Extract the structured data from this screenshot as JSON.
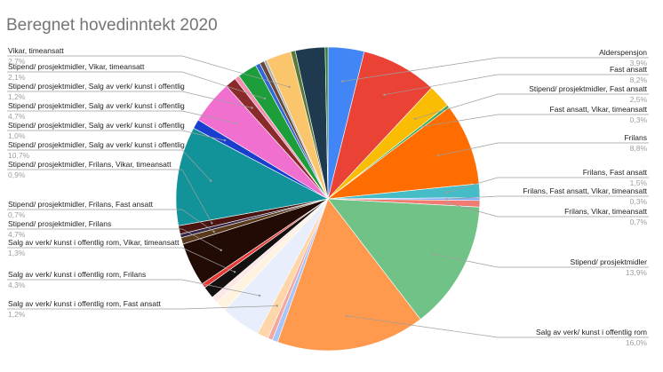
{
  "chart_data": {
    "type": "pie",
    "title": "Beregnet hovedinntekt 2020",
    "slices": [
      {
        "name": "Alderspensjon",
        "value": 3.9,
        "value_label": "3,9%",
        "color": "#4285f4",
        "side": "right"
      },
      {
        "name": "Fast ansatt",
        "value": 8.2,
        "value_label": "8,2%",
        "color": "#ea4335",
        "side": "right"
      },
      {
        "name": "Stipend/ prosjektmidler, Fast ansatt",
        "value": 2.5,
        "value_label": "2,5%",
        "color": "#fbbc04",
        "side": "right"
      },
      {
        "name": "Fast ansatt, Vikar, timeansatt",
        "value": 0.3,
        "value_label": "0,3%",
        "color": "#34a853",
        "side": "right"
      },
      {
        "name": "Frilans",
        "value": 8.8,
        "value_label": "8,8%",
        "color": "#ff6d01",
        "side": "right"
      },
      {
        "name": "Frilans, Fast ansatt",
        "value": 1.5,
        "value_label": "1,5%",
        "color": "#46bdc6",
        "side": "right"
      },
      {
        "name": "Frilans, Fast ansatt, Vikar, timeansatt",
        "value": 0.3,
        "value_label": "0,3%",
        "color": "#7baaf7",
        "side": "right"
      },
      {
        "name": "Frilans, Vikar, timeansatt",
        "value": 0.7,
        "value_label": "0,7%",
        "color": "#f07b72",
        "side": "right"
      },
      {
        "name": "Stipend/ prosjektmidler",
        "value": 13.9,
        "value_label": "13,9%",
        "color": "#71c287",
        "side": "right"
      },
      {
        "name": "Salg av verk/ kunst i offentlig rom",
        "value": 16.0,
        "value_label": "16,0%",
        "color": "#ff994d",
        "side": "right"
      },
      {
        "name": "",
        "value": 0.6,
        "value_label": "",
        "color": "#a8c4f9",
        "side": "none"
      },
      {
        "name": "",
        "value": 0.5,
        "value_label": "",
        "color": "#f4a7a1",
        "side": "none"
      },
      {
        "name": "Salg av verk/ kunst i offentlig rom, Fast ansatt",
        "value": 1.2,
        "value_label": "1,2%",
        "color": "#fdd6a9",
        "side": "left"
      },
      {
        "name": "Salg av verk/ kunst i offentlig rom, Frilans",
        "value": 4.3,
        "value_label": "4,3%",
        "color": "#e8eefc",
        "side": "left"
      },
      {
        "name": "",
        "value": 1.2,
        "value_label": "",
        "color": "#fff3e0",
        "side": "none"
      },
      {
        "name": "",
        "value": 0.7,
        "value_label": "",
        "color": "#fce8e6",
        "side": "none"
      },
      {
        "name": "Salg av verk/ kunst i offentlig rom, Vikar, timeansatt",
        "value": 1.3,
        "value_label": "1,3%",
        "color": "#151010",
        "side": "left"
      },
      {
        "name": "",
        "value": 0.5,
        "value_label": "",
        "color": "#e53935",
        "side": "none"
      },
      {
        "name": "Stipend/ prosjektmidler, Frilans",
        "value": 4.7,
        "value_label": "4,7%",
        "color": "#220a05",
        "side": "left"
      },
      {
        "name": "Stipend/ prosjektmidler, Frilans, Fast ansatt",
        "value": 0.7,
        "value_label": "0,7%",
        "color": "#5a3a1a",
        "side": "left"
      },
      {
        "name": "",
        "value": 0.4,
        "value_label": "",
        "color": "#3a2a4a",
        "side": "none"
      },
      {
        "name": "Stipend/ prosjektmidler, Frilans, Vikar, timeansatt",
        "value": 0.9,
        "value_label": "0,9%",
        "color": "#4a1510",
        "side": "left"
      },
      {
        "name": "Stipend/ prosjektmidler, Salg av verk/ kunst i offentlig",
        "value": 10.7,
        "value_label": "10,7%",
        "color": "#12939a",
        "side": "left"
      },
      {
        "name": "Stipend/ prosjektmidler, Salg av verk/ kunst i offentlig",
        "value": 1.0,
        "value_label": "1,0%",
        "color": "#1a3fcf",
        "side": "left"
      },
      {
        "name": "Stipend/ prosjektmidler, Salg av verk/ kunst i offentlig",
        "value": 4.7,
        "value_label": "4,7%",
        "color": "#f06fcf",
        "side": "left"
      },
      {
        "name": "Stipend/ prosjektmidler, Salg av verk/ kunst i offentlig",
        "value": 1.2,
        "value_label": "1,2%",
        "color": "#8b2a2a",
        "side": "left"
      },
      {
        "name": "",
        "value": 0.5,
        "value_label": "",
        "color": "#f48fb1",
        "side": "none"
      },
      {
        "name": "Stipend/ prosjektmidler, Vikar, timeansatt",
        "value": 2.1,
        "value_label": "2,1%",
        "color": "#1e9e3a",
        "side": "left"
      },
      {
        "name": "",
        "value": 0.5,
        "value_label": "",
        "color": "#3367d6",
        "side": "none"
      },
      {
        "name": "",
        "value": 0.5,
        "value_label": "",
        "color": "#6a4a3a",
        "side": "none"
      },
      {
        "name": "",
        "value": 0.3,
        "value_label": "",
        "color": "#b0b0b0",
        "side": "none"
      },
      {
        "name": "Vikar, timeansatt",
        "value": 2.7,
        "value_label": "2,7%",
        "color": "#fbc56b",
        "side": "left"
      },
      {
        "name": "",
        "value": 0.5,
        "value_label": "",
        "color": "#5a7a3a",
        "side": "none"
      },
      {
        "name": "",
        "value": 3.2,
        "value_label": "",
        "color": "#1f3a4f",
        "side": "none"
      },
      {
        "name": "",
        "value": 0.3,
        "value_label": "",
        "color": "#2e7d32",
        "side": "none"
      }
    ],
    "legend": "none"
  }
}
